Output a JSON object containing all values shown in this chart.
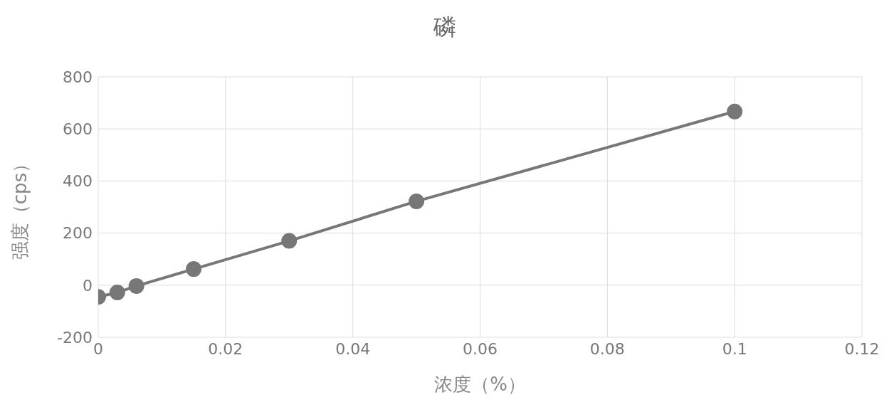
{
  "chart_data": {
    "type": "line",
    "title": "磷",
    "xlabel": "浓度（%）",
    "ylabel": "强度（cps）",
    "x": [
      0,
      0.003,
      0.006,
      0.015,
      0.03,
      0.05,
      0.1
    ],
    "series": [
      {
        "color": "#777777",
        "values": [
          -45,
          -28,
          -3,
          62,
          170,
          322,
          667
        ]
      }
    ],
    "xlim": [
      0,
      0.12
    ],
    "xticks": [
      0,
      0.02,
      0.04,
      0.06,
      0.08,
      0.1,
      0.12
    ],
    "ylim": [
      -200,
      800
    ],
    "yticks": [
      -200,
      0,
      200,
      400,
      600,
      800
    ],
    "grid": true,
    "marker": "circle",
    "line_style": "solid"
  }
}
